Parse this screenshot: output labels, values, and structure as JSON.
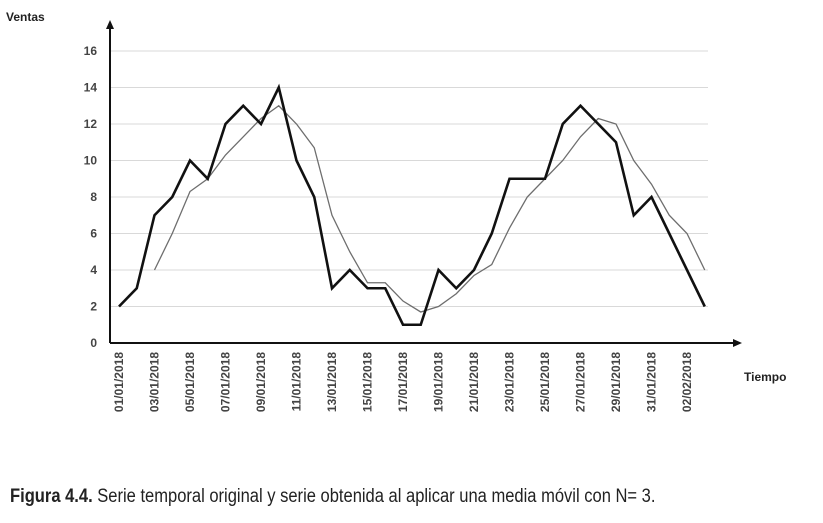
{
  "chart_data": {
    "type": "line",
    "xlabel": "Tiempo",
    "ylabel": "Ventas",
    "ylim": [
      0,
      17
    ],
    "y_ticks": [
      0,
      2,
      4,
      6,
      8,
      10,
      12,
      14,
      16
    ],
    "grid": "horizontal",
    "x": [
      "01/01/2018",
      "02/01/2018",
      "03/01/2018",
      "04/01/2018",
      "05/01/2018",
      "06/01/2018",
      "07/01/2018",
      "08/01/2018",
      "09/01/2018",
      "10/01/2018",
      "11/01/2018",
      "12/01/2018",
      "13/01/2018",
      "14/01/2018",
      "15/01/2018",
      "16/01/2018",
      "17/01/2018",
      "18/01/2018",
      "19/01/2018",
      "20/01/2018",
      "21/01/2018",
      "22/01/2018",
      "23/01/2018",
      "24/01/2018",
      "25/01/2018",
      "26/01/2018",
      "27/01/2018",
      "28/01/2018",
      "29/01/2018",
      "30/01/2018",
      "31/01/2018",
      "01/02/2018",
      "02/02/2018",
      "03/02/2018"
    ],
    "x_tick_labels": [
      "01/01/2018",
      "03/01/2018",
      "05/01/2018",
      "07/01/2018",
      "09/01/2018",
      "11/01/2018",
      "13/01/2018",
      "15/01/2018",
      "17/01/2018",
      "19/01/2018",
      "21/01/2018",
      "23/01/2018",
      "25/01/2018",
      "27/01/2018",
      "29/01/2018",
      "31/01/2018",
      "02/02/2018"
    ],
    "series": [
      {
        "style": "thick-black",
        "values": [
          2,
          3,
          7,
          8,
          10,
          9,
          12,
          13,
          12,
          14,
          10,
          8,
          3,
          4,
          3,
          3,
          1,
          1,
          4,
          3,
          4,
          6,
          9,
          9,
          9,
          12,
          13,
          12,
          11,
          7,
          8,
          6,
          4,
          2
        ]
      },
      {
        "style": "thin-gray",
        "values": [
          null,
          null,
          4,
          6,
          8.3,
          9,
          10.3,
          11.3,
          12.3,
          13,
          12,
          10.7,
          7,
          5,
          3.3,
          3.3,
          2.3,
          1.7,
          2,
          2.7,
          3.7,
          4.3,
          6.3,
          8,
          9,
          10,
          11.3,
          12.3,
          12,
          10,
          8.7,
          7,
          6,
          4
        ]
      }
    ]
  },
  "caption": {
    "label": "Figura 4.4.",
    "text": " Serie temporal original y serie obtenida al aplicar una media móvil con N= 3."
  },
  "colors": {
    "original": "#111111",
    "moving_average": "#6e6e6e",
    "grid": "#d9d9d9",
    "axis": "#111111"
  }
}
